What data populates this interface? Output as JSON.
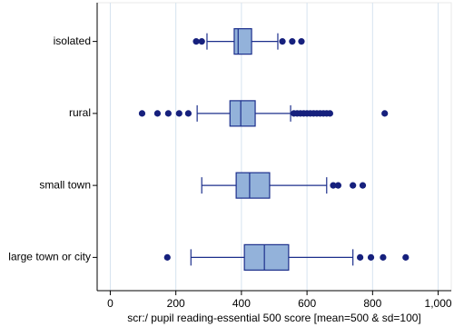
{
  "chart_data": {
    "type": "box",
    "orientation": "horizontal",
    "x_label": "scr:/ pupil reading-essential 500 score [mean=500 & sd=100]",
    "categories": [
      "isolated",
      "rural",
      "small town",
      "large town or city"
    ],
    "boxes": [
      {
        "whisker_low": 295,
        "q1": 378,
        "median": 390,
        "q3": 431,
        "whisker_high": 511,
        "outliers": [
          262,
          279,
          525,
          555,
          583
        ]
      },
      {
        "whisker_low": 265,
        "q1": 365,
        "median": 398,
        "q3": 442,
        "whisker_high": 550,
        "outliers": [
          97,
          144,
          177,
          210,
          238,
          560,
          570,
          580,
          590,
          600,
          610,
          620,
          630,
          640,
          650,
          660,
          670,
          837
        ]
      },
      {
        "whisker_low": 279,
        "q1": 384,
        "median": 425,
        "q3": 486,
        "whisker_high": 660,
        "outliers": [
          680,
          695,
          740,
          770
        ]
      },
      {
        "whisker_low": 246,
        "q1": 409,
        "median": 470,
        "q3": 544,
        "whisker_high": 740,
        "outliers": [
          174,
          762,
          795,
          832,
          901
        ]
      }
    ],
    "box_color": "#93b2da",
    "line_color": "#1c2f8c",
    "outlier_color": "#16207d",
    "xlim": [
      -40,
      1040
    ],
    "xticks": [
      0,
      200,
      400,
      600,
      800,
      {
        "value": 1000,
        "label": "1,000"
      }
    ],
    "grid": true,
    "grid_color": "#d6e3f0"
  }
}
